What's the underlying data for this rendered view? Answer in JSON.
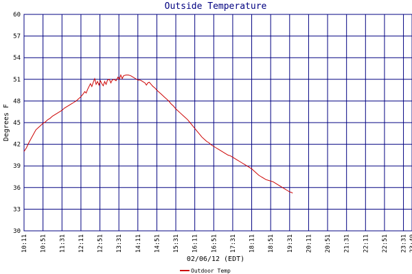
{
  "chart_data": {
    "type": "line",
    "title": "Outside Temperature",
    "xlabel": "02/06/12 (EDT)",
    "ylabel": "Degrees F",
    "ylim": [
      30,
      60
    ],
    "yticks": [
      30,
      33,
      36,
      39,
      42,
      45,
      48,
      51,
      54,
      57,
      60
    ],
    "xticks": [
      "10:11",
      "10:51",
      "11:31",
      "12:11",
      "12:51",
      "13:31",
      "14:11",
      "14:51",
      "15:31",
      "16:11",
      "16:51",
      "17:31",
      "18:11",
      "18:51",
      "19:31",
      "20:11",
      "20:51",
      "21:31",
      "22:11",
      "22:51",
      "23:31",
      "23:49"
    ],
    "xtick_positions": [
      0,
      40,
      80,
      120,
      160,
      200,
      240,
      280,
      320,
      360,
      400,
      440,
      480,
      520,
      560,
      600,
      640,
      680,
      720,
      760,
      800,
      818
    ],
    "xlim": [
      0,
      818
    ],
    "grid": true,
    "legend_position": "bottom-center",
    "colors": {
      "series": "#cc0000",
      "grid": "#000080",
      "title": "#000080"
    },
    "series": [
      {
        "name": "Outdoor Temp",
        "points": [
          [
            0,
            41.0
          ],
          [
            5,
            41.5
          ],
          [
            10,
            42.2
          ],
          [
            15,
            42.8
          ],
          [
            20,
            43.4
          ],
          [
            25,
            44.0
          ],
          [
            30,
            44.3
          ],
          [
            35,
            44.6
          ],
          [
            40,
            44.9
          ],
          [
            45,
            45.1
          ],
          [
            50,
            45.4
          ],
          [
            55,
            45.6
          ],
          [
            60,
            45.9
          ],
          [
            65,
            46.1
          ],
          [
            70,
            46.3
          ],
          [
            75,
            46.5
          ],
          [
            80,
            46.7
          ],
          [
            85,
            47.0
          ],
          [
            90,
            47.2
          ],
          [
            95,
            47.4
          ],
          [
            100,
            47.6
          ],
          [
            105,
            47.8
          ],
          [
            110,
            48.0
          ],
          [
            115,
            48.3
          ],
          [
            120,
            48.6
          ],
          [
            125,
            49.0
          ],
          [
            128,
            49.3
          ],
          [
            131,
            49.1
          ],
          [
            134,
            49.6
          ],
          [
            137,
            50.0
          ],
          [
            140,
            50.4
          ],
          [
            143,
            50.0
          ],
          [
            146,
            50.6
          ],
          [
            149,
            51.1
          ],
          [
            152,
            50.3
          ],
          [
            155,
            50.7
          ],
          [
            158,
            50.2
          ],
          [
            161,
            50.8
          ],
          [
            164,
            50.4
          ],
          [
            167,
            50.1
          ],
          [
            170,
            50.7
          ],
          [
            173,
            50.3
          ],
          [
            176,
            50.9
          ],
          [
            180,
            51.0
          ],
          [
            183,
            50.5
          ],
          [
            186,
            50.9
          ],
          [
            190,
            51.0
          ],
          [
            194,
            50.8
          ],
          [
            198,
            51.3
          ],
          [
            201,
            51.0
          ],
          [
            204,
            51.6
          ],
          [
            207,
            51.1
          ],
          [
            210,
            51.5
          ],
          [
            215,
            51.6
          ],
          [
            220,
            51.6
          ],
          [
            225,
            51.5
          ],
          [
            230,
            51.3
          ],
          [
            235,
            51.1
          ],
          [
            240,
            50.9
          ],
          [
            245,
            50.9
          ],
          [
            250,
            50.7
          ],
          [
            255,
            50.5
          ],
          [
            258,
            50.2
          ],
          [
            261,
            50.5
          ],
          [
            264,
            50.6
          ],
          [
            268,
            50.3
          ],
          [
            272,
            50.0
          ],
          [
            276,
            49.8
          ],
          [
            280,
            49.5
          ],
          [
            285,
            49.2
          ],
          [
            290,
            48.9
          ],
          [
            295,
            48.6
          ],
          [
            300,
            48.3
          ],
          [
            305,
            48.0
          ],
          [
            310,
            47.6
          ],
          [
            315,
            47.3
          ],
          [
            320,
            46.9
          ],
          [
            325,
            46.6
          ],
          [
            330,
            46.3
          ],
          [
            335,
            46.0
          ],
          [
            340,
            45.7
          ],
          [
            345,
            45.4
          ],
          [
            350,
            45.0
          ],
          [
            355,
            44.6
          ],
          [
            360,
            44.2
          ],
          [
            365,
            43.8
          ],
          [
            370,
            43.4
          ],
          [
            375,
            43.0
          ],
          [
            380,
            42.7
          ],
          [
            385,
            42.4
          ],
          [
            390,
            42.2
          ],
          [
            395,
            41.9
          ],
          [
            400,
            41.7
          ],
          [
            405,
            41.5
          ],
          [
            410,
            41.3
          ],
          [
            415,
            41.1
          ],
          [
            420,
            40.9
          ],
          [
            425,
            40.7
          ],
          [
            430,
            40.5
          ],
          [
            435,
            40.4
          ],
          [
            440,
            40.2
          ],
          [
            445,
            40.0
          ],
          [
            450,
            39.8
          ],
          [
            455,
            39.6
          ],
          [
            460,
            39.4
          ],
          [
            465,
            39.2
          ],
          [
            470,
            39.0
          ],
          [
            475,
            38.8
          ],
          [
            480,
            38.6
          ],
          [
            485,
            38.3
          ],
          [
            490,
            38.0
          ],
          [
            495,
            37.7
          ],
          [
            500,
            37.5
          ],
          [
            505,
            37.3
          ],
          [
            510,
            37.1
          ],
          [
            515,
            37.0
          ],
          [
            520,
            36.9
          ],
          [
            525,
            36.8
          ],
          [
            530,
            36.6
          ],
          [
            535,
            36.4
          ],
          [
            540,
            36.2
          ],
          [
            545,
            36.0
          ],
          [
            550,
            35.8
          ],
          [
            555,
            35.6
          ],
          [
            560,
            35.4
          ],
          [
            565,
            35.3
          ],
          [
            566,
            35.2
          ]
        ]
      }
    ]
  }
}
